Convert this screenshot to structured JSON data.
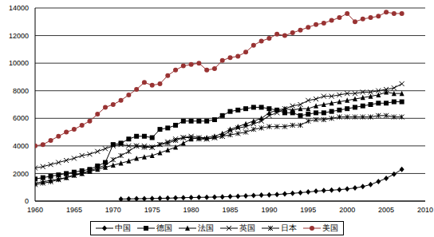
{
  "chart_data": {
    "type": "line",
    "x": [
      1960,
      1961,
      1962,
      1963,
      1964,
      1965,
      1966,
      1967,
      1968,
      1969,
      1970,
      1971,
      1972,
      1973,
      1974,
      1975,
      1976,
      1977,
      1978,
      1979,
      1980,
      1981,
      1982,
      1983,
      1984,
      1985,
      1986,
      1987,
      1988,
      1989,
      1990,
      1991,
      1992,
      1993,
      1994,
      1995,
      1996,
      1997,
      1998,
      1999,
      2000,
      2001,
      2002,
      2003,
      2004,
      2005,
      2006,
      2007
    ],
    "xlim": [
      1960,
      2010
    ],
    "xticks": [
      1960,
      1965,
      1970,
      1975,
      1980,
      1985,
      1990,
      1995,
      2000,
      2005,
      2010
    ],
    "ylim": [
      0,
      14000
    ],
    "yticks": [
      0,
      2000,
      4000,
      6000,
      8000,
      10000,
      12000,
      14000
    ],
    "grid": true,
    "legend": "bottom",
    "series": [
      {
        "name": "中国",
        "color": "#000000",
        "marker": "diamond",
        "values": [
          null,
          null,
          null,
          null,
          null,
          null,
          null,
          null,
          null,
          null,
          null,
          150,
          160,
          170,
          180,
          190,
          200,
          210,
          230,
          250,
          260,
          270,
          280,
          290,
          310,
          330,
          350,
          380,
          410,
          430,
          450,
          480,
          520,
          560,
          610,
          660,
          720,
          760,
          790,
          830,
          880,
          950,
          1050,
          1200,
          1420,
          1650,
          1950,
          2300
        ]
      },
      {
        "name": "德国",
        "color": "#000000",
        "marker": "square",
        "values": [
          1600,
          1700,
          1800,
          1900,
          2000,
          2100,
          2200,
          2300,
          2550,
          2800,
          4100,
          4200,
          4500,
          4700,
          4700,
          4600,
          5200,
          5300,
          5500,
          5800,
          5800,
          5800,
          5800,
          5900,
          6200,
          6500,
          6600,
          6700,
          6800,
          6800,
          6700,
          6600,
          6400,
          6400,
          6200,
          6300,
          6400,
          6400,
          6500,
          6600,
          6700,
          6800,
          6900,
          7000,
          7100,
          7100,
          7200,
          7200
        ]
      },
      {
        "name": "法国",
        "color": "#000000",
        "marker": "triangle",
        "values": [
          1300,
          1400,
          1500,
          1600,
          1700,
          1900,
          2000,
          2150,
          2300,
          2450,
          2600,
          2750,
          2900,
          3100,
          3200,
          3300,
          3500,
          3700,
          3900,
          4200,
          4500,
          4600,
          4600,
          4700,
          4900,
          5200,
          5400,
          5600,
          5800,
          6000,
          6400,
          6600,
          6700,
          6600,
          6700,
          6700,
          6900,
          7000,
          7100,
          7200,
          7300,
          7400,
          7500,
          7600,
          7700,
          7900,
          7800,
          7800
        ]
      },
      {
        "name": "英国",
        "color": "#000000",
        "marker": "x",
        "values": [
          2400,
          2500,
          2650,
          2800,
          2950,
          3100,
          3300,
          3400,
          3600,
          3800,
          4000,
          4100,
          4000,
          4000,
          4000,
          3900,
          4100,
          4300,
          4500,
          4600,
          4700,
          4600,
          4500,
          4600,
          4700,
          5100,
          5300,
          5400,
          5600,
          5800,
          6200,
          6400,
          6700,
          6900,
          7000,
          7300,
          7400,
          7600,
          7600,
          7700,
          7800,
          7800,
          7900,
          7900,
          8000,
          8100,
          8200,
          8500
        ]
      },
      {
        "name": "日本",
        "color": "#000000",
        "marker": "star",
        "values": [
          1200,
          1300,
          1400,
          1550,
          1700,
          1850,
          2000,
          2200,
          2400,
          2600,
          3000,
          3300,
          3600,
          4000,
          3900,
          3900,
          4100,
          4200,
          4400,
          4600,
          4600,
          4500,
          4500,
          4600,
          4700,
          4800,
          4900,
          5000,
          5200,
          5300,
          5400,
          5400,
          5400,
          5500,
          5500,
          5800,
          5900,
          5900,
          6000,
          6100,
          6100,
          6100,
          6100,
          6100,
          6200,
          6200,
          6100,
          6100
        ]
      },
      {
        "name": "美国",
        "color": "#993333",
        "marker": "circle",
        "values": [
          4000,
          4100,
          4400,
          4700,
          5000,
          5200,
          5500,
          5800,
          6300,
          6800,
          7000,
          7300,
          7700,
          8100,
          8600,
          8400,
          8500,
          9100,
          9500,
          9800,
          9900,
          10000,
          9500,
          9600,
          10200,
          10400,
          10500,
          10800,
          11300,
          11600,
          11800,
          12100,
          12000,
          12200,
          12400,
          12600,
          12800,
          12900,
          13100,
          13300,
          13600,
          13000,
          13200,
          13300,
          13400,
          13700,
          13600,
          13600
        ]
      }
    ]
  }
}
